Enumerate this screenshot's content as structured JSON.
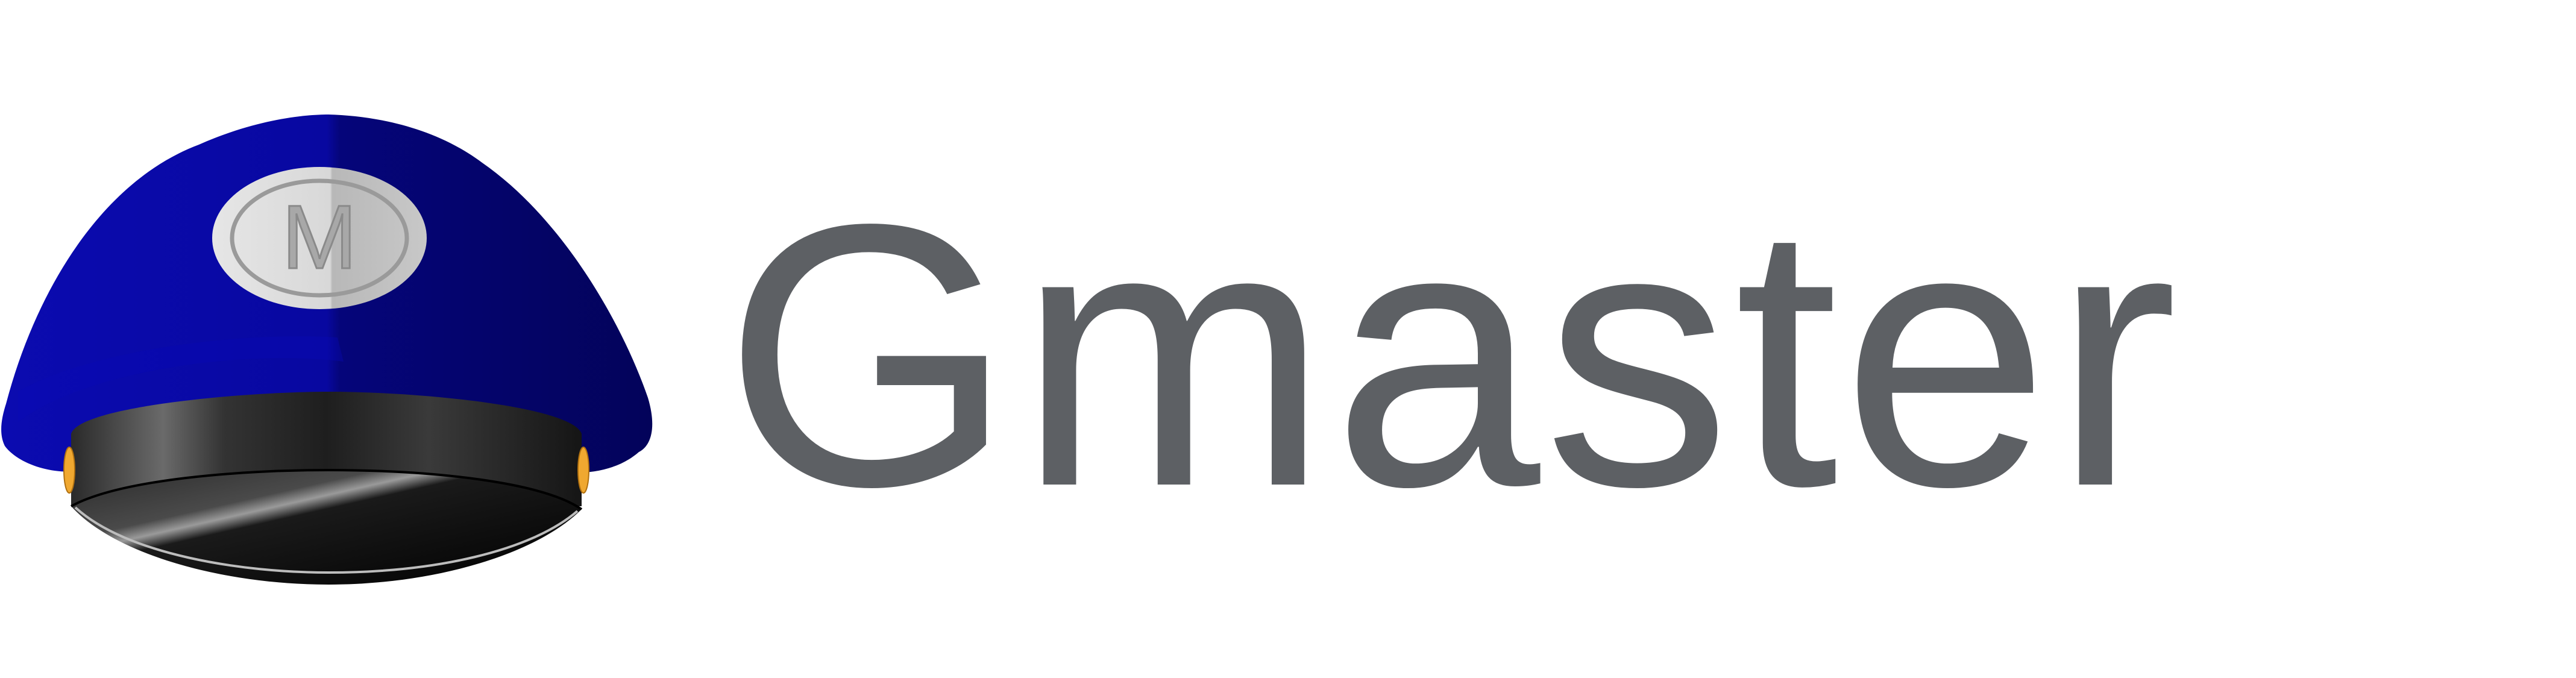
{
  "brand": {
    "name": "Gmaster",
    "badge_letter": "M",
    "icon": "captain-hat-icon"
  },
  "colors": {
    "text": "#5d6064",
    "hat_blue": "#0a0a9e",
    "hat_blue_dark": "#06066b",
    "band": "#1e1e1e",
    "button_gold": "#f0a830",
    "badge": "#d4d4d4"
  }
}
